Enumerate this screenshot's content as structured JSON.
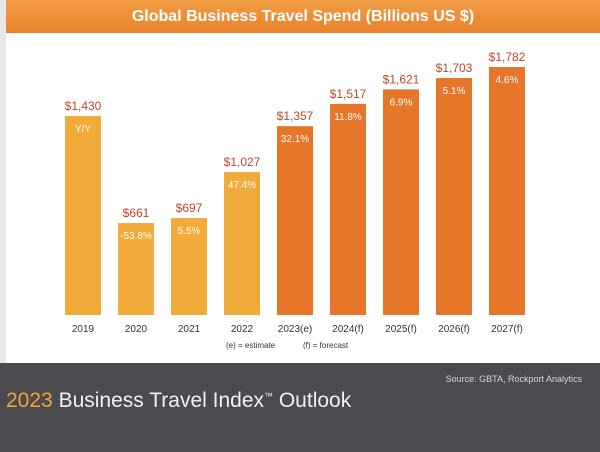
{
  "title": "Global Business Travel Spend (Billions US $)",
  "source": "Source: GBTA, Rockport Analytics",
  "footer": {
    "year": "2023",
    "title_main": "Business Travel Index",
    "tm": "™",
    "title_rest": "Outlook"
  },
  "notes": {
    "estimate": "(e) = estimate",
    "forecast": "(f) = forecast"
  },
  "colors": {
    "actual": "#f0ab3a",
    "projected": "#e6762a",
    "value_label": "#c2452a",
    "title_bar": "#ee8f37",
    "footer_bg": "#4a4a4f"
  },
  "chart_data": {
    "type": "bar",
    "title": "Global Business Travel Spend (Billions US $)",
    "categories": [
      "2019",
      "2020",
      "2021",
      "2022",
      "2023(e)",
      "2024(f)",
      "2025(f)",
      "2026(f)",
      "2027(f)"
    ],
    "values": [
      1430,
      661,
      697,
      1027,
      1357,
      1517,
      1621,
      1703,
      1782
    ],
    "value_labels": [
      "$1,430",
      "$661",
      "$697",
      "$1,027",
      "$1,357",
      "$1,517",
      "$1,621",
      "$1,703",
      "$1,782"
    ],
    "yoy_labels": [
      "Y/Y",
      "-53.8%",
      "5.5%",
      "47.4%",
      "32.1%",
      "11.8%",
      "6.9%",
      "5.1%",
      "4.6%"
    ],
    "bar_kind": [
      "actual",
      "actual",
      "actual",
      "actual",
      "projected",
      "projected",
      "projected",
      "projected",
      "projected"
    ],
    "ylim": [
      0,
      1782
    ],
    "grid": false,
    "legend": "none"
  }
}
